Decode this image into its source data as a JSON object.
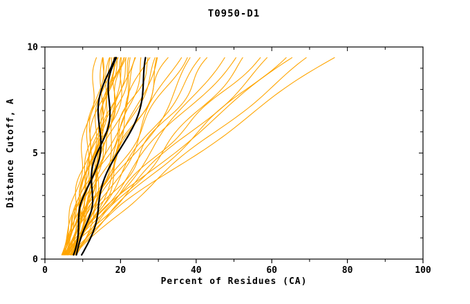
{
  "page": {
    "background": "#FFFFFF"
  },
  "chart_data": {
    "type": "line",
    "title": "T0950-D1",
    "xlabel": "Percent of Residues (CA)",
    "ylabel": "Distance Cutoff, A",
    "xlim": [
      0,
      100
    ],
    "ylim": [
      0,
      10
    ],
    "x_major_ticks": [
      0,
      20,
      40,
      60,
      80,
      100
    ],
    "x_minor_ticks": [
      10,
      30,
      50,
      70,
      90
    ],
    "y_major_ticks": [
      0,
      5,
      10
    ],
    "y_minor_ticks": [
      1,
      2,
      3,
      4,
      6,
      7,
      8,
      9
    ],
    "grid": false,
    "legend": "none",
    "frame": "box",
    "colors": {
      "o": "#FFA500",
      "k": "#000000"
    },
    "default_width": 1.1,
    "y_curve_start": 0.2,
    "y_curve_end": 9.5,
    "series_note": "Each model curve: x(y) = xb + (xt-xb)*(y/9.5)^p + a*sin(f*y+ph), y in [0.2, 9.5]; xb = percent at cutoff 0, xt = percent at cutoff 9.5 A",
    "series": [
      {
        "c": "o",
        "xb": 4.0,
        "xt": 14.0,
        "p": 0.8,
        "a": 0.8,
        "f": 1.9,
        "ph": 0.3
      },
      {
        "c": "o",
        "xb": 5.0,
        "xt": 15.0,
        "p": 0.75,
        "a": 1.2,
        "f": 1.4,
        "ph": 2.1
      },
      {
        "c": "o",
        "xb": 4.5,
        "xt": 16.0,
        "p": 0.9,
        "a": 0.9,
        "f": 2.0,
        "ph": 4.0
      },
      {
        "c": "o",
        "xb": 6.0,
        "xt": 16.5,
        "p": 0.7,
        "a": 1.4,
        "f": 1.1,
        "ph": 1.0
      },
      {
        "c": "o",
        "xb": 5.5,
        "xt": 17.0,
        "p": 0.85,
        "a": 1.0,
        "f": 1.7,
        "ph": 5.2
      },
      {
        "c": "o",
        "xb": 4.0,
        "xt": 17.5,
        "p": 0.8,
        "a": 1.5,
        "f": 1.3,
        "ph": 2.8
      },
      {
        "c": "o",
        "xb": 6.5,
        "xt": 18.0,
        "p": 0.75,
        "a": 0.7,
        "f": 2.2,
        "ph": 0.9
      },
      {
        "c": "o",
        "xb": 5.0,
        "xt": 18.0,
        "p": 0.95,
        "a": 1.1,
        "f": 1.5,
        "ph": 3.6
      },
      {
        "c": "o",
        "xb": 7.0,
        "xt": 18.5,
        "p": 0.7,
        "a": 1.3,
        "f": 1.0,
        "ph": 1.7
      },
      {
        "c": "o",
        "xb": 4.5,
        "xt": 19.0,
        "p": 0.9,
        "a": 0.8,
        "f": 1.8,
        "ph": 4.8
      },
      {
        "c": "o",
        "xb": 6.0,
        "xt": 19.5,
        "p": 0.8,
        "a": 1.6,
        "f": 1.2,
        "ph": 2.4
      },
      {
        "c": "o",
        "xb": 5.0,
        "xt": 20.0,
        "p": 1.0,
        "a": 0.9,
        "f": 2.1,
        "ph": 0.6
      },
      {
        "c": "o",
        "xb": 7.5,
        "xt": 20.0,
        "p": 0.75,
        "a": 1.2,
        "f": 1.6,
        "ph": 3.1
      },
      {
        "c": "o",
        "xb": 4.0,
        "xt": 20.5,
        "p": 0.9,
        "a": 1.4,
        "f": 1.1,
        "ph": 5.5
      },
      {
        "c": "o",
        "xb": 6.5,
        "xt": 21.0,
        "p": 0.85,
        "a": 0.8,
        "f": 1.9,
        "ph": 1.4
      },
      {
        "c": "o",
        "xb": 5.5,
        "xt": 21.5,
        "p": 0.8,
        "a": 1.5,
        "f": 1.4,
        "ph": 3.9
      },
      {
        "c": "o",
        "xb": 4.5,
        "xt": 22.0,
        "p": 1.0,
        "a": 1.0,
        "f": 1.7,
        "ph": 0.2
      },
      {
        "c": "o",
        "xb": 7.0,
        "xt": 22.5,
        "p": 0.75,
        "a": 1.3,
        "f": 1.2,
        "ph": 2.6
      },
      {
        "c": "o",
        "xb": 5.0,
        "xt": 23.0,
        "p": 0.9,
        "a": 0.9,
        "f": 2.0,
        "ph": 4.4
      },
      {
        "c": "o",
        "xb": 6.0,
        "xt": 24.0,
        "p": 0.85,
        "a": 1.6,
        "f": 1.0,
        "ph": 1.1
      },
      {
        "c": "o",
        "xb": 4.5,
        "xt": 25.0,
        "p": 0.95,
        "a": 1.1,
        "f": 1.5,
        "ph": 3.3
      },
      {
        "c": "o",
        "xb": 7.5,
        "xt": 26.0,
        "p": 0.8,
        "a": 0.8,
        "f": 1.8,
        "ph": 5.8
      },
      {
        "c": "o",
        "xb": 5.5,
        "xt": 27.0,
        "p": 0.9,
        "a": 1.4,
        "f": 1.3,
        "ph": 0.8
      },
      {
        "c": "o",
        "xb": 4.0,
        "xt": 28.0,
        "p": 1.0,
        "a": 1.0,
        "f": 2.1,
        "ph": 2.9
      },
      {
        "c": "o",
        "xb": 6.5,
        "xt": 29.0,
        "p": 0.85,
        "a": 1.2,
        "f": 1.1,
        "ph": 4.6
      },
      {
        "c": "o",
        "xb": 5.0,
        "xt": 30.0,
        "p": 0.95,
        "a": 0.9,
        "f": 1.6,
        "ph": 1.9
      },
      {
        "c": "o",
        "xb": 7.0,
        "xt": 31.0,
        "p": 0.9,
        "a": 1.5,
        "f": 1.4,
        "ph": 3.7
      },
      {
        "c": "o",
        "xb": 4.5,
        "xt": 33.0,
        "p": 1.0,
        "a": 1.1,
        "f": 1.9,
        "ph": 0.4
      },
      {
        "c": "o",
        "xb": 6.0,
        "xt": 35.0,
        "p": 0.9,
        "a": 1.3,
        "f": 1.2,
        "ph": 2.2
      },
      {
        "c": "o",
        "xb": 5.5,
        "xt": 37.0,
        "p": 1.05,
        "a": 0.9,
        "f": 1.7,
        "ph": 5.0
      },
      {
        "c": "o",
        "xb": 4.0,
        "xt": 40.0,
        "p": 0.95,
        "a": 1.6,
        "f": 1.0,
        "ph": 1.5
      },
      {
        "c": "o",
        "xb": 6.5,
        "xt": 42.0,
        "p": 1.1,
        "a": 1.0,
        "f": 1.5,
        "ph": 3.4
      },
      {
        "c": "o",
        "xb": 5.0,
        "xt": 44.0,
        "p": 1.0,
        "a": 1.3,
        "f": 1.8,
        "ph": 0.7
      },
      {
        "c": "o",
        "xb": 7.5,
        "xt": 47.0,
        "p": 1.05,
        "a": 0.9,
        "f": 1.3,
        "ph": 2.7
      },
      {
        "c": "o",
        "xb": 4.5,
        "xt": 50.0,
        "p": 1.1,
        "a": 1.5,
        "f": 1.1,
        "ph": 4.9
      },
      {
        "c": "o",
        "xb": 6.0,
        "xt": 53.0,
        "p": 1.0,
        "a": 1.1,
        "f": 1.6,
        "ph": 1.2
      },
      {
        "c": "o",
        "xb": 5.5,
        "xt": 57.0,
        "p": 1.15,
        "a": 0.8,
        "f": 2.0,
        "ph": 3.0
      },
      {
        "c": "o",
        "xb": 4.0,
        "xt": 60.0,
        "p": 1.05,
        "a": 1.4,
        "f": 1.2,
        "ph": 5.4
      },
      {
        "c": "o",
        "xb": 6.5,
        "xt": 63.0,
        "p": 1.1,
        "a": 1.0,
        "f": 1.5,
        "ph": 0.5
      },
      {
        "c": "o",
        "xb": 5.0,
        "xt": 66.0,
        "p": 1.2,
        "a": 1.2,
        "f": 1.0,
        "ph": 2.5
      },
      {
        "c": "o",
        "xb": 7.0,
        "xt": 70.0,
        "p": 1.1,
        "a": 0.9,
        "f": 1.4,
        "ph": 4.2
      },
      {
        "c": "o",
        "xb": 5.5,
        "xt": 77.0,
        "p": 1.15,
        "a": 1.3,
        "f": 1.1,
        "ph": 1.8
      },
      {
        "c": "k",
        "xb": 7.0,
        "xt": 17.5,
        "p": 0.8,
        "a": 1.4,
        "f": 1.2,
        "ph": 2.0,
        "w": 2.2
      },
      {
        "c": "k",
        "xb": 8.0,
        "xt": 19.0,
        "p": 0.85,
        "a": 1.1,
        "f": 1.5,
        "ph": 4.5,
        "w": 2.2
      },
      {
        "c": "k",
        "xb": 9.0,
        "xt": 28.0,
        "p": 0.9,
        "a": 1.6,
        "f": 1.0,
        "ph": 1.0,
        "w": 2.2
      }
    ]
  }
}
